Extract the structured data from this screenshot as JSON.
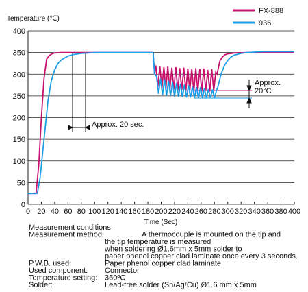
{
  "chart_data": {
    "type": "line",
    "y_label": "Temperature (℃)",
    "x_label": "Time (Sec)",
    "xlim": [
      0,
      400
    ],
    "xticks": [
      0,
      20,
      40,
      60,
      80,
      100,
      120,
      140,
      160,
      180,
      200,
      220,
      240,
      260,
      280,
      300,
      320,
      340,
      360,
      380,
      400
    ],
    "ylim": [
      0,
      400
    ],
    "yticks": [
      0,
      50,
      100,
      150,
      200,
      250,
      300,
      350,
      400
    ],
    "grid": true,
    "series": [
      {
        "name": "FX-888",
        "color": "#c8106e",
        "x": [
          0,
          12,
          16,
          20,
          24,
          28,
          32,
          36,
          40,
          50,
          100,
          150,
          186,
          188,
          190,
          192,
          195,
          198,
          201,
          204,
          207,
          210,
          213,
          216,
          219,
          222,
          225,
          228,
          231,
          234,
          237,
          240,
          243,
          246,
          249,
          252,
          255,
          258,
          261,
          264,
          267,
          270,
          273,
          276,
          279,
          282,
          284,
          288,
          292,
          296,
          300,
          310,
          330,
          400
        ],
        "values": [
          25,
          25,
          90,
          200,
          290,
          335,
          343,
          347,
          349,
          350,
          350,
          350,
          350,
          350,
          300,
          320,
          270,
          318,
          268,
          316,
          266,
          318,
          264,
          315,
          265,
          316,
          262,
          314,
          263,
          315,
          260,
          313,
          262,
          312,
          260,
          314,
          261,
          312,
          260,
          313,
          262,
          310,
          260,
          312,
          262,
          305,
          300,
          330,
          340,
          345,
          347,
          349,
          350,
          350
        ]
      },
      {
        "name": "936",
        "color": "#1e9ee6",
        "x": [
          0,
          14,
          18,
          22,
          26,
          30,
          35,
          40,
          45,
          50,
          60,
          70,
          80,
          90,
          100,
          150,
          186,
          188,
          190,
          193,
          196,
          199,
          202,
          205,
          208,
          211,
          214,
          217,
          220,
          223,
          226,
          229,
          232,
          235,
          238,
          241,
          244,
          247,
          250,
          253,
          256,
          259,
          262,
          265,
          268,
          271,
          274,
          277,
          280,
          283,
          285,
          290,
          295,
          300,
          305,
          310,
          320,
          330,
          350,
          400
        ],
        "values": [
          25,
          25,
          60,
          120,
          180,
          240,
          285,
          310,
          325,
          333,
          342,
          346,
          348,
          349,
          350,
          350,
          350,
          350,
          300,
          295,
          255,
          290,
          252,
          288,
          250,
          285,
          250,
          282,
          248,
          280,
          248,
          278,
          247,
          276,
          246,
          275,
          246,
          272,
          245,
          270,
          245,
          270,
          245,
          268,
          245,
          266,
          245,
          265,
          245,
          262,
          270,
          300,
          320,
          332,
          340,
          344,
          348,
          350,
          352,
          352
        ]
      }
    ],
    "annotations": [
      "Approx. 20 sec.",
      "Approx.",
      "20°C"
    ]
  },
  "notes": {
    "heading": "Measurement conditions",
    "rows": [
      [
        "Measurement method:",
        "A thermocouple is mounted on the tip and",
        "the tip temperature is measured",
        "when soldering Ø1.6mm x 5mm solder to",
        "paper phenol copper clad laminate once every 3 seconds."
      ],
      [
        "P.W.B. used:",
        "Paper phenol copper clad laminate"
      ],
      [
        "Used component:",
        "Connector"
      ],
      [
        "Temperature setting:",
        "350ºC"
      ],
      [
        "Solder:",
        "Lead-free solder (Sn/Ag/Cu) Ø1.6 mm x 5mm"
      ]
    ]
  }
}
